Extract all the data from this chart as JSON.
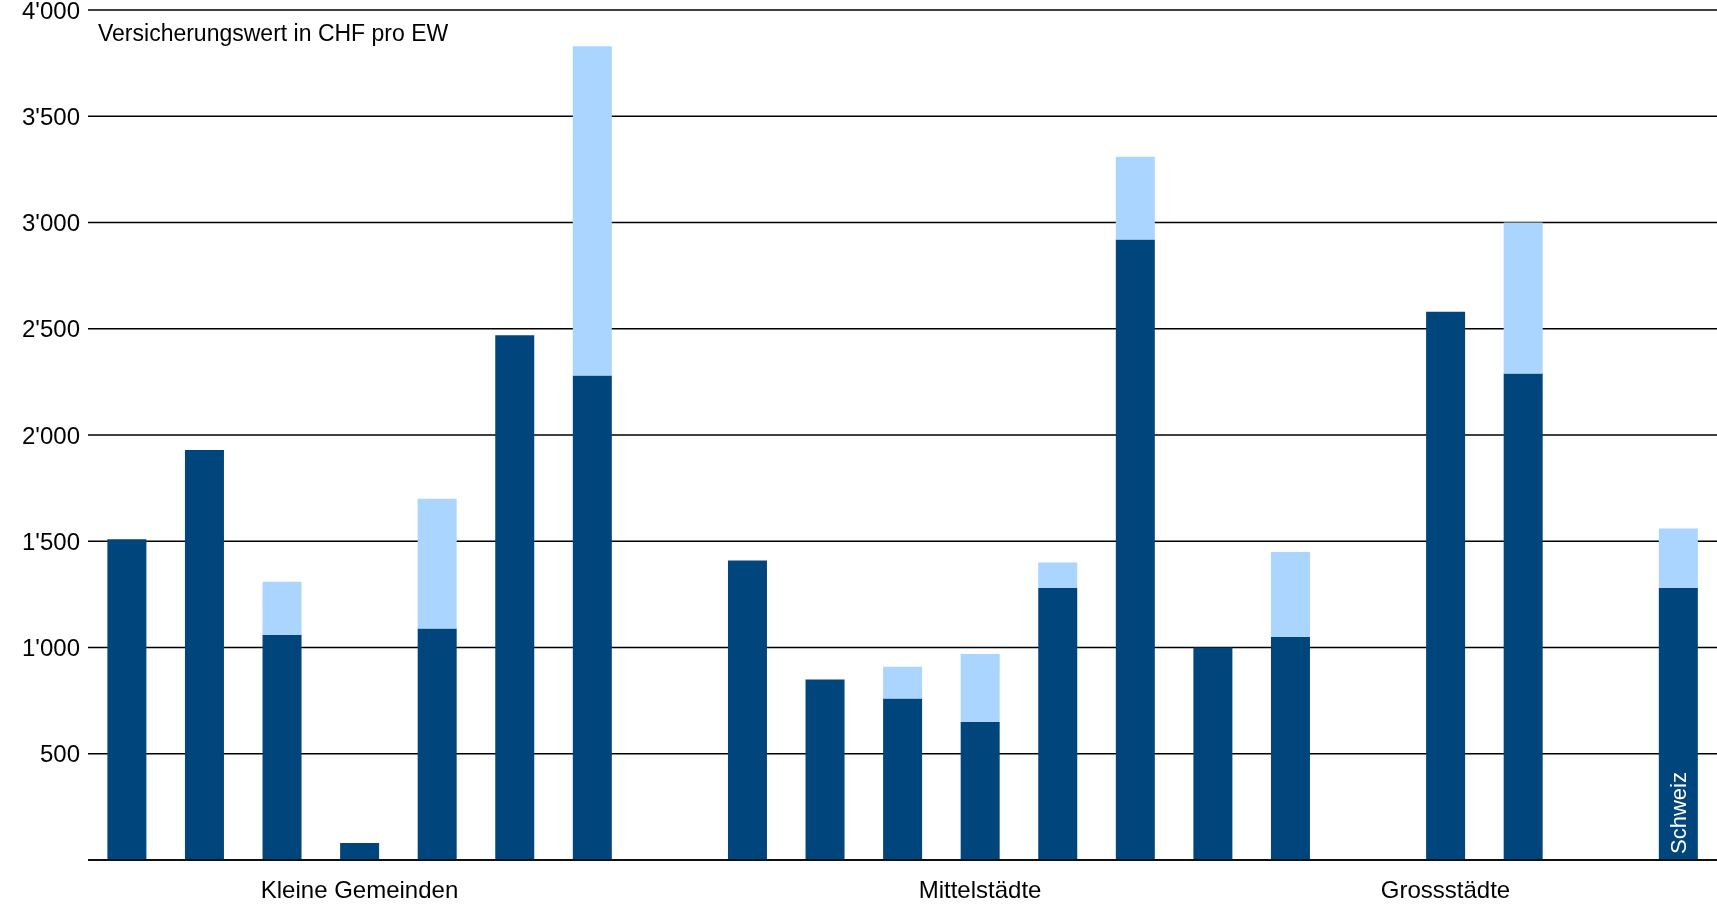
{
  "chart_data": {
    "type": "bar",
    "stacked": true,
    "ylabel": "Versicherungswert in CHF pro EW",
    "categories": [
      null,
      null,
      null,
      "Kleine Gemeinden",
      null,
      null,
      null,
      null,
      null,
      null,
      null,
      "Mittelstädte",
      null,
      null,
      null,
      null,
      null,
      "Grossstädte",
      null,
      null,
      "Schweiz"
    ],
    "series": [
      {
        "color": "#00457c",
        "values": [
          1510,
          1930,
          1060,
          80,
          1090,
          2470,
          2280,
          null,
          1410,
          850,
          760,
          650,
          1280,
          2920,
          1000,
          1050,
          null,
          2580,
          2290,
          null,
          1280
        ]
      },
      {
        "color": "#a9d5ff",
        "values": [
          null,
          null,
          250,
          null,
          610,
          null,
          1550,
          null,
          null,
          null,
          150,
          320,
          120,
          390,
          null,
          400,
          null,
          null,
          710,
          null,
          280
        ]
      }
    ],
    "ylim": [
      0,
      4000
    ],
    "yticks": [
      {
        "value": 0,
        "label": null
      },
      {
        "value": 500,
        "label": "500"
      },
      {
        "value": 1000,
        "label": "1'000"
      },
      {
        "value": 1500,
        "label": "1'500"
      },
      {
        "value": 2000,
        "label": "2'000"
      },
      {
        "value": 2500,
        "label": "2'500"
      },
      {
        "value": 3000,
        "label": "3'000"
      },
      {
        "value": 3500,
        "label": "3'500"
      },
      {
        "value": 4000,
        "label": "4'000"
      }
    ],
    "grid": "y"
  }
}
